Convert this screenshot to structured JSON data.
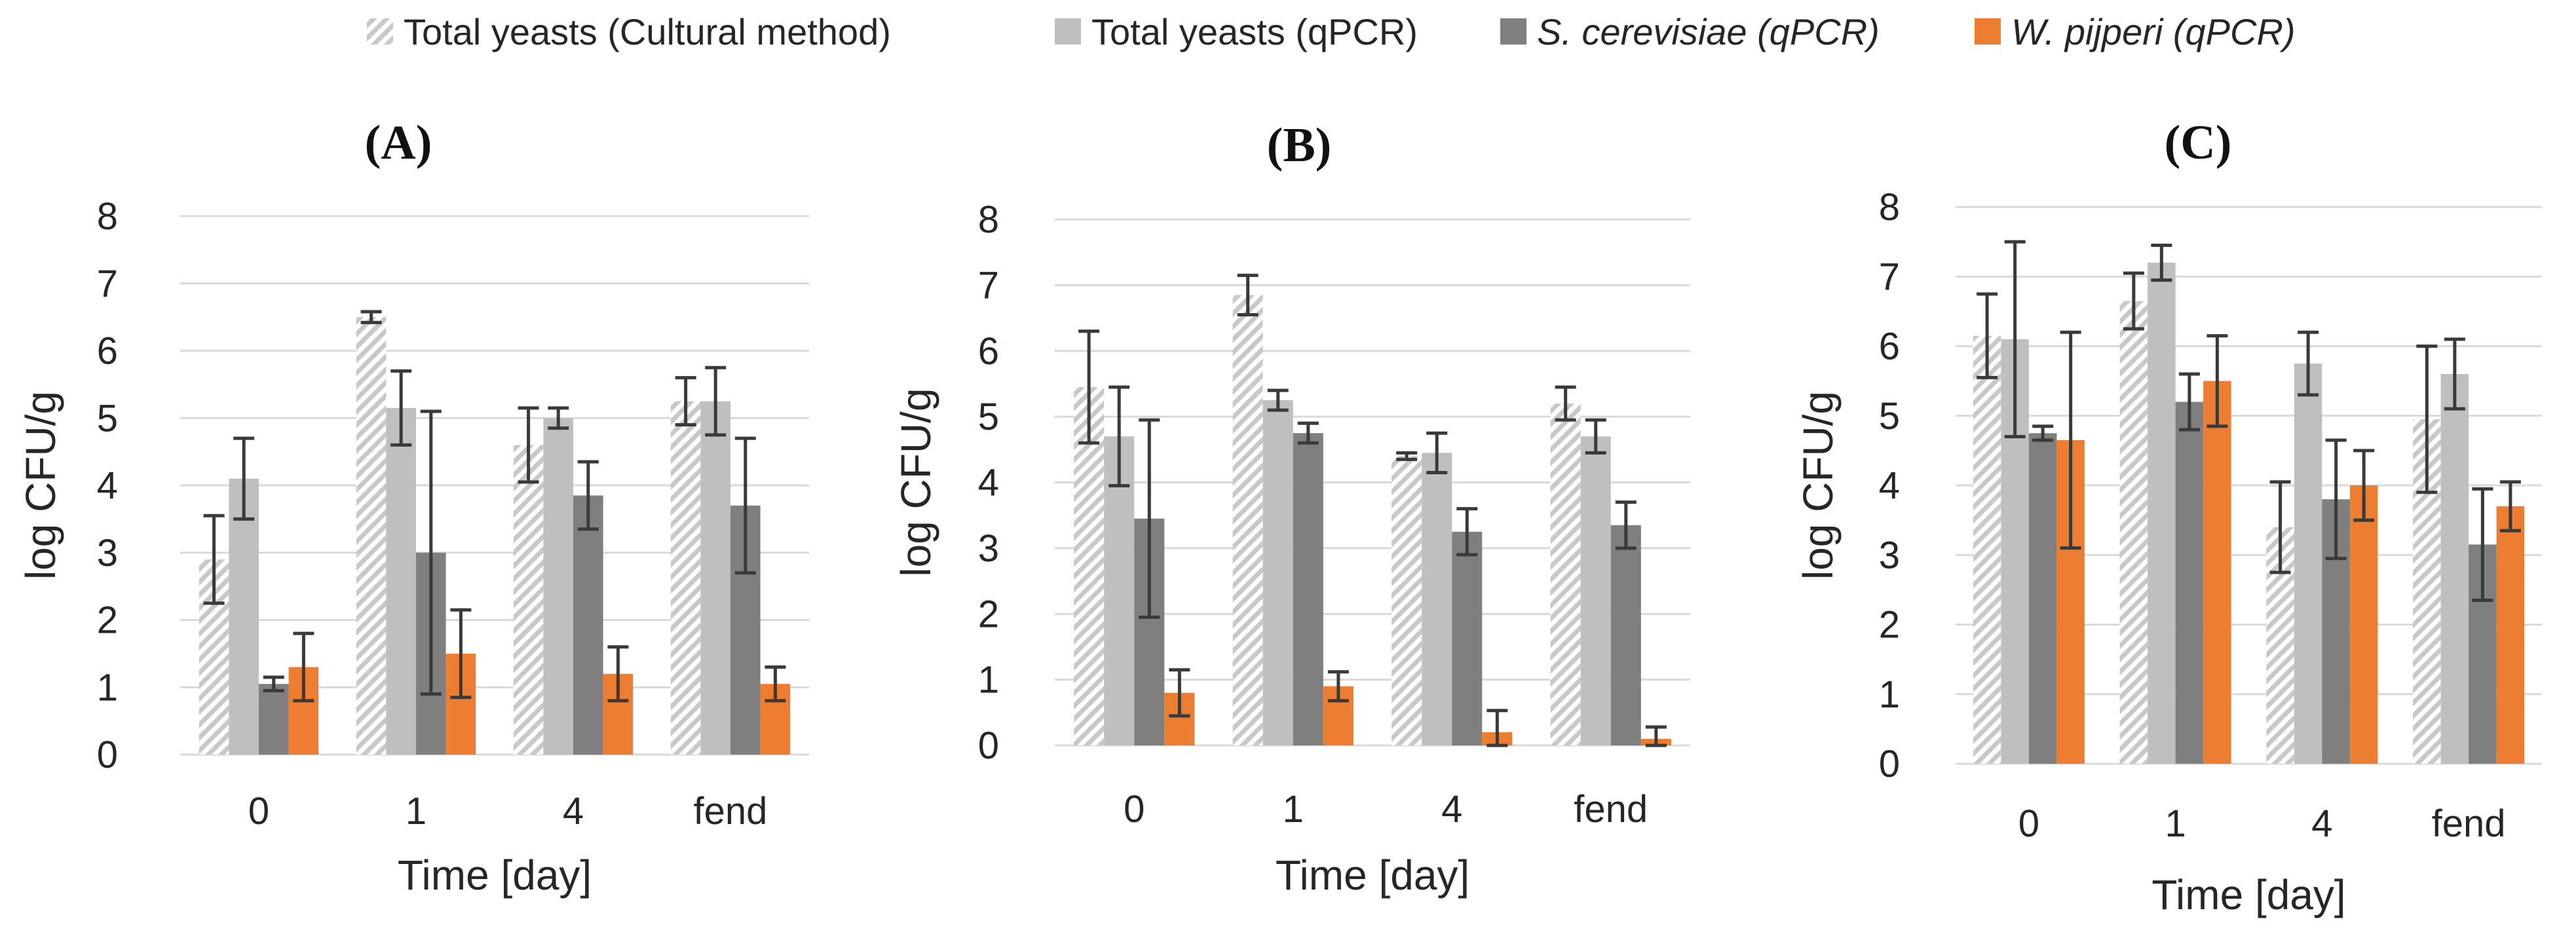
{
  "chart_data": [
    {
      "type": "bar",
      "title": "(A)",
      "xlabel": "Time [day]",
      "ylabel": "log CFU/g",
      "ylim": [
        0,
        8
      ],
      "categories": [
        "0",
        "1",
        "4",
        "fend"
      ],
      "series": [
        {
          "name": "Total yeasts (Cultural method)",
          "values": [
            2.9,
            6.5,
            4.6,
            5.25
          ],
          "errors": [
            0.65,
            0.08,
            0.55,
            0.35
          ]
        },
        {
          "name": "Total yeasts (qPCR)",
          "values": [
            4.1,
            5.15,
            5.0,
            5.25
          ],
          "errors": [
            0.6,
            0.55,
            0.15,
            0.5
          ]
        },
        {
          "name": "S. cerevisiae (qPCR)",
          "values": [
            1.05,
            3.0,
            3.85,
            3.7
          ],
          "errors": [
            0.1,
            2.1,
            0.5,
            1.0
          ]
        },
        {
          "name": "W. pijperi (qPCR)",
          "values": [
            1.3,
            1.5,
            1.2,
            1.05
          ],
          "errors": [
            0.5,
            0.65,
            0.4,
            0.25
          ]
        }
      ]
    },
    {
      "type": "bar",
      "title": "(B)",
      "xlabel": "Time [day]",
      "ylabel": "log CFU/g",
      "ylim": [
        0,
        8
      ],
      "categories": [
        "0",
        "1",
        "4",
        "fend"
      ],
      "series": [
        {
          "name": "Total yeasts (Cultural method)",
          "values": [
            5.45,
            6.85,
            4.4,
            5.2
          ],
          "errors": [
            0.85,
            0.3,
            0.05,
            0.25
          ]
        },
        {
          "name": "Total yeasts (qPCR)",
          "values": [
            4.7,
            5.25,
            4.45,
            4.7
          ],
          "errors": [
            0.75,
            0.15,
            0.3,
            0.25
          ]
        },
        {
          "name": "S. cerevisiae (qPCR)",
          "values": [
            3.45,
            4.75,
            3.25,
            3.35
          ],
          "errors": [
            1.5,
            0.15,
            0.35,
            0.35
          ]
        },
        {
          "name": "W. pijperi (qPCR)",
          "values": [
            0.8,
            0.9,
            0.2,
            0.1
          ],
          "errors": [
            0.35,
            0.22,
            0.33,
            0.18
          ]
        }
      ]
    },
    {
      "type": "bar",
      "title": "(C)",
      "xlabel": "Time [day]",
      "ylabel": "log CFU/g",
      "ylim": [
        0,
        8
      ],
      "categories": [
        "0",
        "1",
        "4",
        "fend"
      ],
      "series": [
        {
          "name": "Total yeasts (Cultural method)",
          "values": [
            6.15,
            6.65,
            3.4,
            4.95
          ],
          "errors": [
            0.6,
            0.4,
            0.65,
            1.05
          ]
        },
        {
          "name": "Total yeasts (qPCR)",
          "values": [
            6.1,
            7.2,
            5.75,
            5.6
          ],
          "errors": [
            1.4,
            0.25,
            0.45,
            0.5
          ]
        },
        {
          "name": "S. cerevisiae (qPCR)",
          "values": [
            4.75,
            5.2,
            3.8,
            3.15
          ],
          "errors": [
            0.1,
            0.4,
            0.85,
            0.8
          ]
        },
        {
          "name": "W. pijperi (qPCR)",
          "values": [
            4.65,
            5.5,
            4.0,
            3.7
          ],
          "errors": [
            1.55,
            0.65,
            0.5,
            0.35
          ]
        }
      ]
    }
  ],
  "legend": {
    "items": [
      {
        "label": "Total yeasts (Cultural method)",
        "style": "hatched",
        "italic": false
      },
      {
        "label": "Total yeasts (qPCR)",
        "style": "light-gray",
        "italic": false
      },
      {
        "label": "S. cerevisiae (qPCR)",
        "style": "dark-gray",
        "italic": true
      },
      {
        "label": "W. pijperi (qPCR)",
        "style": "orange",
        "italic": true
      }
    ]
  },
  "colors": {
    "cultural_hatch": "#c8c8c8",
    "qpcr_total": "#bfbfbf",
    "s_cerevisiae": "#7f7f7f",
    "w_pijperi": "#ed7d31",
    "gridline": "#d9d9d9",
    "error_bar": "#3a3a3a"
  }
}
